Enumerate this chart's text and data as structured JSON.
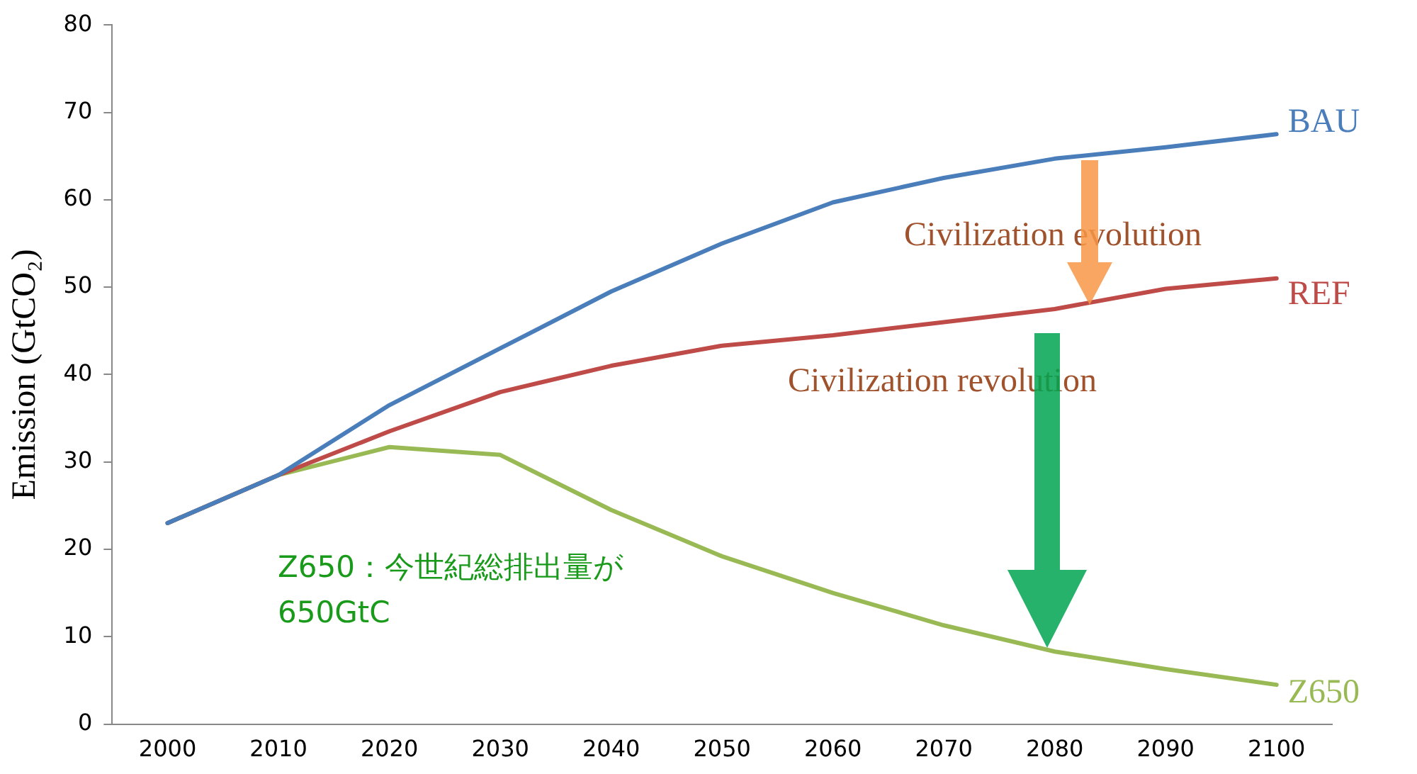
{
  "chart_data": {
    "type": "line",
    "ylabel": "Emission (GtCO₂)",
    "categories": [
      "2000",
      "2010",
      "2020",
      "2030",
      "2040",
      "2050",
      "2060",
      "2070",
      "2080",
      "2090",
      "2100"
    ],
    "series": [
      {
        "name": "BAU",
        "color": "#4a7ebb",
        "values": [
          23,
          28.5,
          36.5,
          43,
          49.5,
          55,
          59.7,
          62.5,
          64.7,
          66,
          67.5
        ]
      },
      {
        "name": "REF",
        "color": "#be4b48",
        "values": [
          23,
          28.5,
          33.5,
          38,
          41,
          43.3,
          44.5,
          46,
          47.5,
          49.8,
          51
        ]
      },
      {
        "name": "Z650",
        "color": "#98b954",
        "values": [
          23,
          28.5,
          31.7,
          30.8,
          24.5,
          19.2,
          15,
          11.3,
          8.3,
          6.3,
          4.5
        ]
      }
    ],
    "ylim": [
      0,
      80
    ],
    "yticks": [
      0,
      10,
      20,
      30,
      40,
      50,
      60,
      70,
      80
    ],
    "grid": false,
    "legend": false,
    "marker": "none",
    "line_style": "solid",
    "annotations": [
      {
        "text": "Civilization evolution",
        "x": "2080",
        "y": 48
      },
      "Civilization revolution",
      "Z650：今世紀総排出量が650GtC"
    ]
  }
}
